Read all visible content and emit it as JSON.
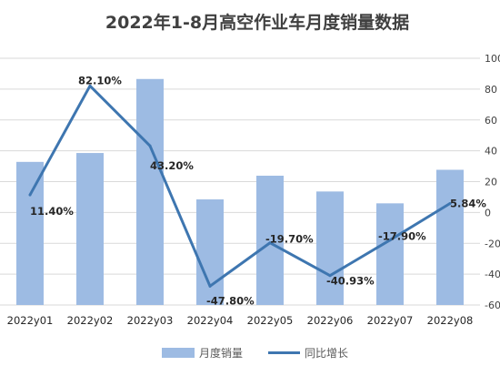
{
  "chart_data": {
    "type": "bar+line",
    "title": "2022年1-8月高空作业车月度销量数据",
    "categories": [
      "2022y01",
      "2022y02",
      "2022y03",
      "2022y04",
      "2022y05",
      "2022y06",
      "2022y07",
      "2022y08"
    ],
    "series": [
      {
        "name": "月度销量",
        "type": "bar",
        "axis": "left",
        "values": [
          1450,
          1540,
          2290,
          1070,
          1310,
          1150,
          1030,
          1370
        ]
      },
      {
        "name": "同比增长",
        "type": "line",
        "axis": "right",
        "values": [
          11.4,
          82.1,
          43.2,
          -47.8,
          -19.7,
          -40.93,
          -17.9,
          5.84
        ],
        "labels": [
          "11.40%",
          "82.10%",
          "43.20%",
          "-47.80%",
          "-19.70%",
          "-40.93%",
          "-17.90%",
          "5.84%"
        ]
      }
    ],
    "y_left": {
      "range": [
        0,
        2500
      ],
      "ticks": []
    },
    "y_right": {
      "range": [
        -60,
        100
      ],
      "ticks": [
        "100",
        "80",
        "60",
        "40",
        "20",
        "0",
        "-20",
        "-40",
        "-60"
      ]
    },
    "grid": true,
    "legend_position": "bottom",
    "colors": {
      "bar": "#9DBBE3",
      "line": "#3E76B0",
      "grid": "#D9D9D9"
    }
  }
}
